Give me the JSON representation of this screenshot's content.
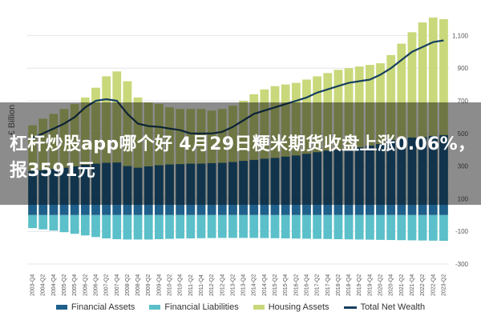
{
  "chart_data": {
    "type": "bar",
    "ylabel": "£ Billion",
    "ylim": [
      -300,
      1200
    ],
    "yticks": [
      -300,
      -100,
      100,
      300,
      500,
      700,
      900,
      1100
    ],
    "ytick_labels": [
      "-300",
      "-100",
      "100",
      "300",
      "500",
      "700",
      "900",
      "1,100"
    ],
    "grid": true,
    "legend_position": "bottom",
    "categories": [
      "2003-Q4",
      "2004-Q2",
      "2004-Q4",
      "2005-Q2",
      "2005-Q4",
      "2006-Q2",
      "2006-Q4",
      "2007-Q2",
      "2007-Q4",
      "2008-Q2",
      "2008-Q4",
      "2009-Q2",
      "2009-Q4",
      "2010-Q2",
      "2010-Q4",
      "2011-Q2",
      "2011-Q4",
      "2012-Q2",
      "2012-Q4",
      "2013-Q2",
      "2013-Q4",
      "2014-Q2",
      "2014-Q4",
      "2015-Q2",
      "2015-Q4",
      "2016-Q2",
      "2016-Q4",
      "2017-Q2",
      "2017-Q4",
      "2018-Q2",
      "2018-Q4",
      "2019-Q2",
      "2019-Q4",
      "2020-Q2",
      "2020-Q4",
      "2021-Q2",
      "2021-Q4",
      "2022-Q2",
      "2022-Q4",
      "2023-Q2"
    ],
    "series": [
      {
        "name": "Financial Assets",
        "type": "bar",
        "color": "#1f5f8b",
        "values": [
          270,
          275,
          282,
          290,
          298,
          308,
          315,
          320,
          322,
          300,
          290,
          298,
          305,
          310,
          312,
          315,
          315,
          318,
          320,
          325,
          332,
          338,
          345,
          350,
          358,
          365,
          375,
          385,
          395,
          400,
          405,
          415,
          425,
          435,
          460,
          470,
          475,
          478,
          485,
          490
        ]
      },
      {
        "name": "Financial Liabilities",
        "type": "bar",
        "color": "#5bc0c9",
        "values": [
          -80,
          -88,
          -95,
          -105,
          -115,
          -125,
          -135,
          -143,
          -148,
          -150,
          -150,
          -150,
          -148,
          -146,
          -144,
          -143,
          -142,
          -141,
          -140,
          -140,
          -140,
          -140,
          -141,
          -142,
          -143,
          -144,
          -145,
          -146,
          -147,
          -148,
          -149,
          -150,
          -151,
          -152,
          -153,
          -154,
          -155,
          -156,
          -157,
          -158
        ]
      },
      {
        "name": "Housing Assets",
        "type": "bar",
        "color": "#c9d87a",
        "values": [
          550,
          590,
          620,
          650,
          680,
          720,
          780,
          850,
          880,
          820,
          720,
          690,
          680,
          660,
          650,
          650,
          650,
          640,
          650,
          670,
          700,
          740,
          770,
          790,
          800,
          810,
          830,
          850,
          870,
          890,
          900,
          910,
          920,
          930,
          980,
          1050,
          1120,
          1180,
          1210,
          1200
        ]
      },
      {
        "name": "Total Net Wealth",
        "type": "line",
        "color": "#173f5f",
        "values": [
          470,
          500,
          530,
          560,
          600,
          660,
          700,
          710,
          700,
          620,
          560,
          545,
          540,
          530,
          520,
          500,
          500,
          500,
          510,
          540,
          580,
          620,
          640,
          660,
          680,
          700,
          720,
          750,
          770,
          790,
          810,
          820,
          830,
          860,
          900,
          950,
          1000,
          1030,
          1060,
          1070
        ]
      }
    ]
  },
  "title_overlay": "杠杆炒股app哪个好 4月29日粳米期货收盘上涨0.06%，报3591元"
}
